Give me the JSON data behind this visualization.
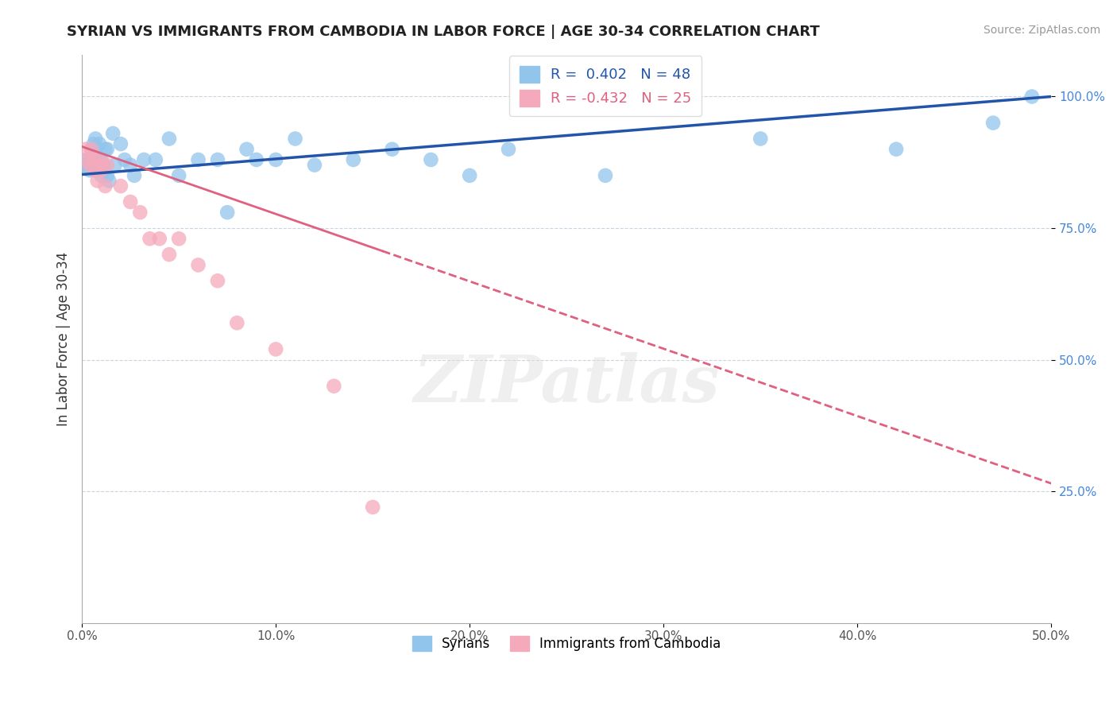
{
  "title": "SYRIAN VS IMMIGRANTS FROM CAMBODIA IN LABOR FORCE | AGE 30-34 CORRELATION CHART",
  "source": "Source: ZipAtlas.com",
  "ylabel": "In Labor Force | Age 30-34",
  "xlim": [
    0.0,
    0.5
  ],
  "ylim": [
    0.0,
    1.08
  ],
  "xticks": [
    0.0,
    0.1,
    0.2,
    0.3,
    0.4,
    0.5
  ],
  "xticklabels": [
    "0.0%",
    "10.0%",
    "20.0%",
    "30.0%",
    "40.0%",
    "50.0%"
  ],
  "yticks": [
    0.25,
    0.5,
    0.75,
    1.0
  ],
  "yticklabels": [
    "25.0%",
    "50.0%",
    "75.0%",
    "100.0%"
  ],
  "blue_R": 0.402,
  "blue_N": 48,
  "pink_R": -0.432,
  "pink_N": 25,
  "blue_color": "#92C5EC",
  "pink_color": "#F5AABC",
  "blue_line_color": "#2255AA",
  "pink_line_color": "#E06080",
  "watermark_text": "ZIPatlas",
  "syrians_x": [
    0.001,
    0.002,
    0.003,
    0.004,
    0.005,
    0.005,
    0.006,
    0.006,
    0.007,
    0.007,
    0.008,
    0.009,
    0.009,
    0.01,
    0.01,
    0.011,
    0.012,
    0.013,
    0.013,
    0.014,
    0.016,
    0.017,
    0.02,
    0.022,
    0.025,
    0.027,
    0.032,
    0.038,
    0.045,
    0.05,
    0.06,
    0.07,
    0.075,
    0.085,
    0.09,
    0.1,
    0.11,
    0.12,
    0.14,
    0.16,
    0.18,
    0.2,
    0.22,
    0.27,
    0.35,
    0.42,
    0.47,
    0.49
  ],
  "syrians_y": [
    0.87,
    0.88,
    0.87,
    0.86,
    0.88,
    0.9,
    0.87,
    0.91,
    0.89,
    0.92,
    0.87,
    0.88,
    0.91,
    0.85,
    0.88,
    0.87,
    0.9,
    0.85,
    0.9,
    0.84,
    0.93,
    0.87,
    0.91,
    0.88,
    0.87,
    0.85,
    0.88,
    0.88,
    0.92,
    0.85,
    0.88,
    0.88,
    0.78,
    0.9,
    0.88,
    0.88,
    0.92,
    0.87,
    0.88,
    0.9,
    0.88,
    0.85,
    0.9,
    0.85,
    0.92,
    0.9,
    0.95,
    1.0
  ],
  "cambodia_x": [
    0.002,
    0.003,
    0.004,
    0.005,
    0.006,
    0.007,
    0.008,
    0.009,
    0.01,
    0.011,
    0.012,
    0.013,
    0.02,
    0.025,
    0.03,
    0.035,
    0.04,
    0.045,
    0.05,
    0.06,
    0.07,
    0.08,
    0.1,
    0.13,
    0.15
  ],
  "cambodia_y": [
    0.9,
    0.88,
    0.87,
    0.9,
    0.88,
    0.86,
    0.84,
    0.88,
    0.86,
    0.87,
    0.83,
    0.87,
    0.83,
    0.8,
    0.78,
    0.73,
    0.73,
    0.7,
    0.73,
    0.68,
    0.65,
    0.57,
    0.52,
    0.45,
    0.22
  ],
  "blue_line_x0": 0.0,
  "blue_line_y0": 0.852,
  "blue_line_x1": 0.5,
  "blue_line_y1": 1.0,
  "pink_line_x0": 0.0,
  "pink_line_y0": 0.905,
  "pink_line_x1_solid": 0.155,
  "pink_line_x1": 0.5,
  "pink_line_y1": 0.265
}
